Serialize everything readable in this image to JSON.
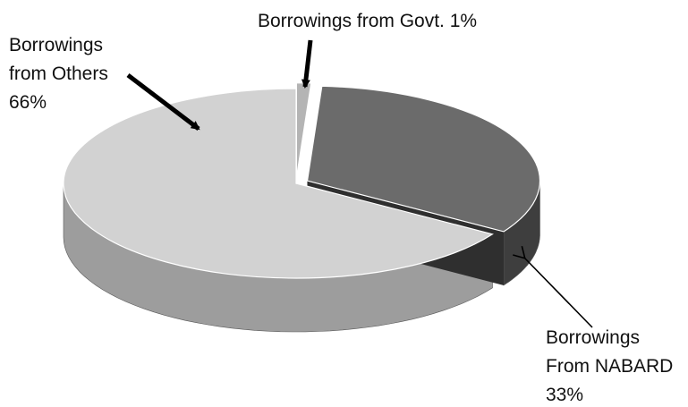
{
  "chart_data": {
    "type": "pie",
    "style": "3d",
    "start_angle_clockwise_from_top": 0,
    "slices": [
      {
        "label": "Borrowings from Govt. 1%",
        "lines": [
          "Borrowings from Govt. 1%"
        ],
        "value": 1,
        "exploded": true,
        "color": "#b4b4b4",
        "side_color": "#8a8a8a"
      },
      {
        "label": "Borrowings From NABARD 33%",
        "lines": [
          "Borrowings",
          "From NABARD",
          "33%"
        ],
        "value": 33,
        "exploded": true,
        "color": "#6b6b6b",
        "side_color": "#3e3e3e"
      },
      {
        "label": "Borrowings from Others 66%",
        "lines": [
          "Borrowings",
          "from Others",
          "66%"
        ],
        "value": 66,
        "exploded": false,
        "color": "#d2d2d2",
        "side_color": "#9d9d9d"
      }
    ]
  }
}
